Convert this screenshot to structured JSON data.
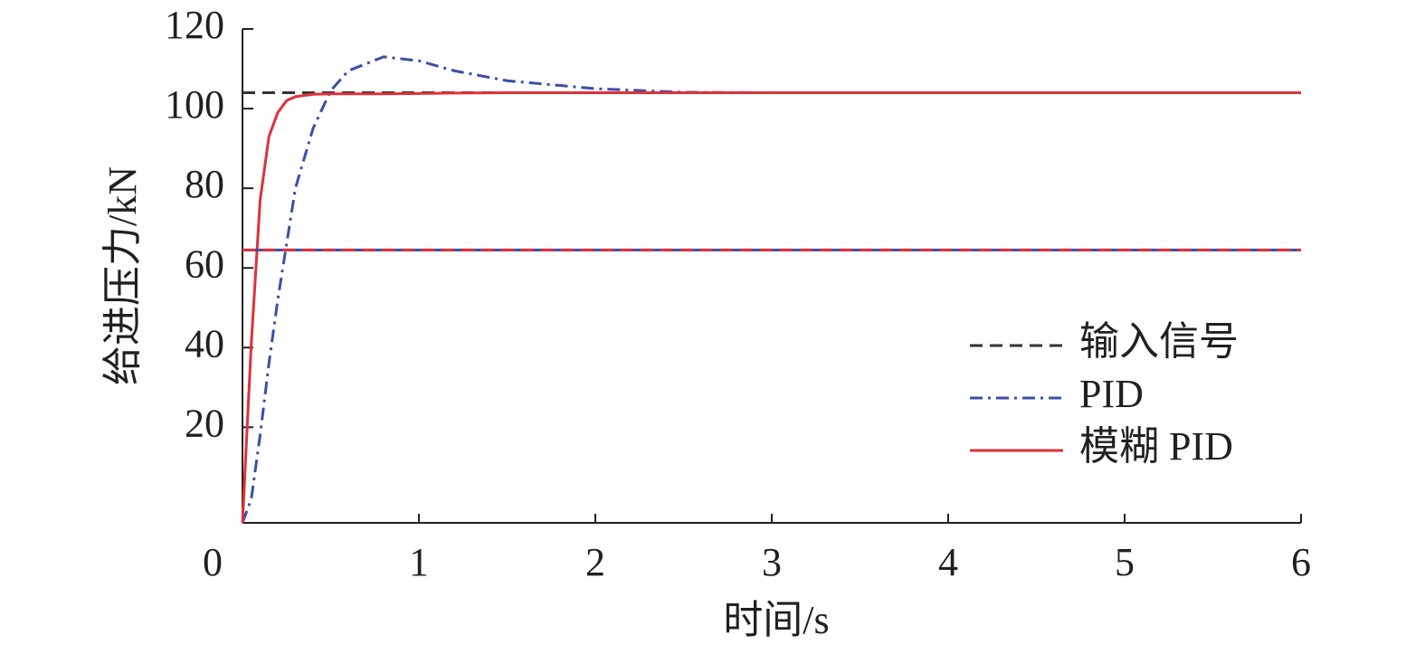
{
  "chart_data": {
    "type": "line",
    "x_label": "时间/s",
    "y_label": "给进压力/kN",
    "x": [
      0,
      0.05,
      0.1,
      0.15,
      0.2,
      0.25,
      0.3,
      0.4,
      0.5,
      0.6,
      0.8,
      1,
      1.2,
      1.5,
      2,
      2.5,
      3,
      4,
      5,
      6
    ],
    "series": [
      {
        "name": "输入信号",
        "color": "#333333",
        "dash": "dashed",
        "values": [
          104,
          104,
          104,
          104,
          104,
          104,
          104,
          104,
          104,
          104,
          104,
          104,
          104,
          104,
          104,
          104,
          104,
          104,
          104,
          104
        ]
      },
      {
        "name": "PID",
        "color": "#3a4fa8",
        "dash": "dashdot",
        "values": [
          -4,
          2,
          18,
          36,
          52,
          66,
          80,
          95,
          104.5,
          109.5,
          113,
          112,
          109.5,
          107,
          105,
          104.1,
          104,
          104,
          104,
          104
        ]
      },
      {
        "name": "模糊 PID",
        "color": "#e0303a",
        "dash": "solid",
        "values": [
          -4,
          41,
          77,
          93,
          99,
          102,
          103,
          103.6,
          103.7,
          103.7,
          103.7,
          103.8,
          103.9,
          104,
          104,
          104,
          104,
          104,
          104,
          104
        ]
      },
      {
        "color": "#3a4fa8",
        "dash": "solid",
        "values": [
          64.5,
          64.5,
          64.5,
          64.5,
          64.5,
          64.5,
          64.5,
          64.5,
          64.5,
          64.5,
          64.5,
          64.5,
          64.5,
          64.5,
          64.5,
          64.5,
          64.5,
          64.5,
          64.5,
          64.5
        ]
      },
      {
        "color": "#e0303a",
        "dash": "dashed",
        "values": [
          64.5,
          64.5,
          64.5,
          64.5,
          64.5,
          64.5,
          64.5,
          64.5,
          64.5,
          64.5,
          64.5,
          64.5,
          64.5,
          64.5,
          64.5,
          64.5,
          64.5,
          64.5,
          64.5,
          64.5
        ]
      }
    ],
    "xlim": [
      0,
      6
    ],
    "xticks": [
      0,
      1,
      2,
      3,
      4,
      5,
      6
    ],
    "ylim": [
      -4,
      120
    ],
    "yticks": [
      20,
      40,
      60,
      80,
      100,
      120
    ],
    "grid": false,
    "legend": "right"
  }
}
